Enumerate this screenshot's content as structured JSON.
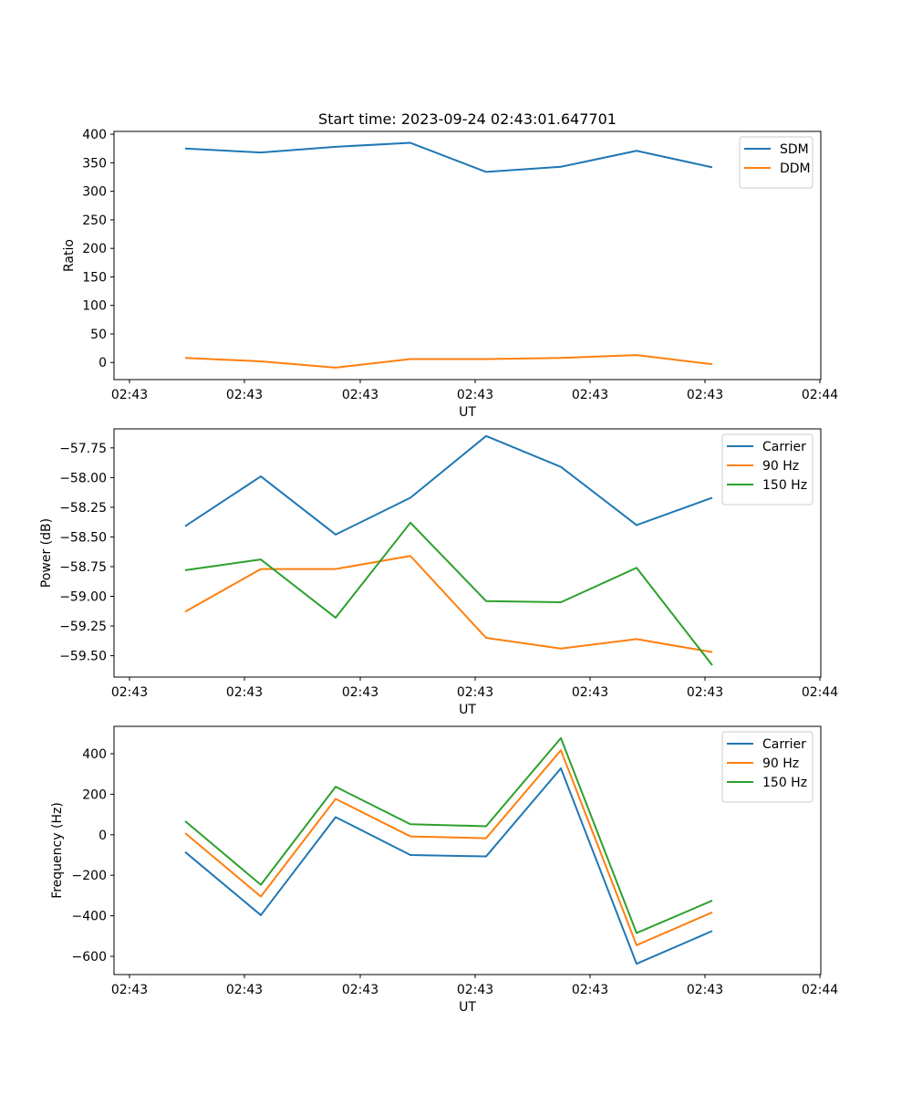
{
  "figure_title": "Start time: 2023-09-24 02:43:01.647701",
  "chart_data": [
    {
      "type": "line",
      "title": "Start time: 2023-09-24 02:43:01.647701",
      "xlabel": "UT",
      "ylabel": "Ratio",
      "x_tick_labels": [
        "02:43",
        "02:43",
        "02:43",
        "02:43",
        "02:43",
        "02:43",
        "02:43"
      ],
      "x_last_tick_label": "02:44",
      "ylim": [
        -30,
        405
      ],
      "y_ticks": [
        0,
        50,
        100,
        150,
        200,
        250,
        300,
        350,
        400
      ],
      "y_tick_labels": [
        "0",
        "50",
        "100",
        "150",
        "200",
        "250",
        "300",
        "350",
        "400"
      ],
      "series": [
        {
          "name": "SDM",
          "color": "#1f77b4",
          "values": [
            375,
            368,
            378,
            385,
            334,
            343,
            371,
            342
          ]
        },
        {
          "name": "DDM",
          "color": "#ff7f0e",
          "values": [
            8,
            2,
            -9,
            6,
            6,
            8,
            13,
            -3
          ]
        }
      ]
    },
    {
      "type": "line",
      "title": "",
      "xlabel": "UT",
      "ylabel": "Power (dB)",
      "x_tick_labels": [
        "02:43",
        "02:43",
        "02:43",
        "02:43",
        "02:43",
        "02:43",
        "02:43"
      ],
      "x_last_tick_label": "02:44",
      "ylim": [
        -59.68,
        -57.59
      ],
      "y_ticks": [
        -59.5,
        -59.25,
        -59.0,
        -58.75,
        -58.5,
        -58.25,
        -58.0,
        -57.75
      ],
      "y_tick_labels": [
        "−59.50",
        "−59.25",
        "−59.00",
        "−58.75",
        "−58.50",
        "−58.25",
        "−58.00",
        "−57.75"
      ],
      "series": [
        {
          "name": "Carrier",
          "color": "#1f77b4",
          "values": [
            -58.41,
            -57.99,
            -58.48,
            -58.17,
            -57.65,
            -57.91,
            -58.4,
            -58.17
          ]
        },
        {
          "name": "90 Hz",
          "color": "#ff7f0e",
          "values": [
            -59.13,
            -58.77,
            -58.77,
            -58.66,
            -59.35,
            -59.44,
            -59.36,
            -59.47
          ]
        },
        {
          "name": "150 Hz",
          "color": "#2ca02c",
          "values": [
            -58.78,
            -58.69,
            -59.18,
            -58.38,
            -59.04,
            -59.05,
            -58.76,
            -59.58
          ]
        }
      ]
    },
    {
      "type": "line",
      "title": "",
      "xlabel": "UT",
      "ylabel": "Frequency (Hz)",
      "x_tick_labels": [
        "02:43",
        "02:43",
        "02:43",
        "02:43",
        "02:43",
        "02:43",
        "02:43"
      ],
      "x_last_tick_label": "02:44",
      "ylim": [
        -690,
        535
      ],
      "y_ticks": [
        -600,
        -400,
        -200,
        0,
        200,
        400
      ],
      "y_tick_labels": [
        "−600",
        "−400",
        "−200",
        "0",
        "200",
        "400"
      ],
      "series": [
        {
          "name": "Carrier",
          "color": "#1f77b4",
          "values": [
            -85,
            -397,
            87,
            -100,
            -107,
            328,
            -637,
            -475
          ]
        },
        {
          "name": "90 Hz",
          "color": "#ff7f0e",
          "values": [
            8,
            -305,
            177,
            -8,
            -17,
            417,
            -545,
            -383
          ]
        },
        {
          "name": "150 Hz",
          "color": "#2ca02c",
          "values": [
            67,
            -247,
            237,
            52,
            42,
            477,
            -485,
            -325
          ]
        }
      ]
    }
  ]
}
